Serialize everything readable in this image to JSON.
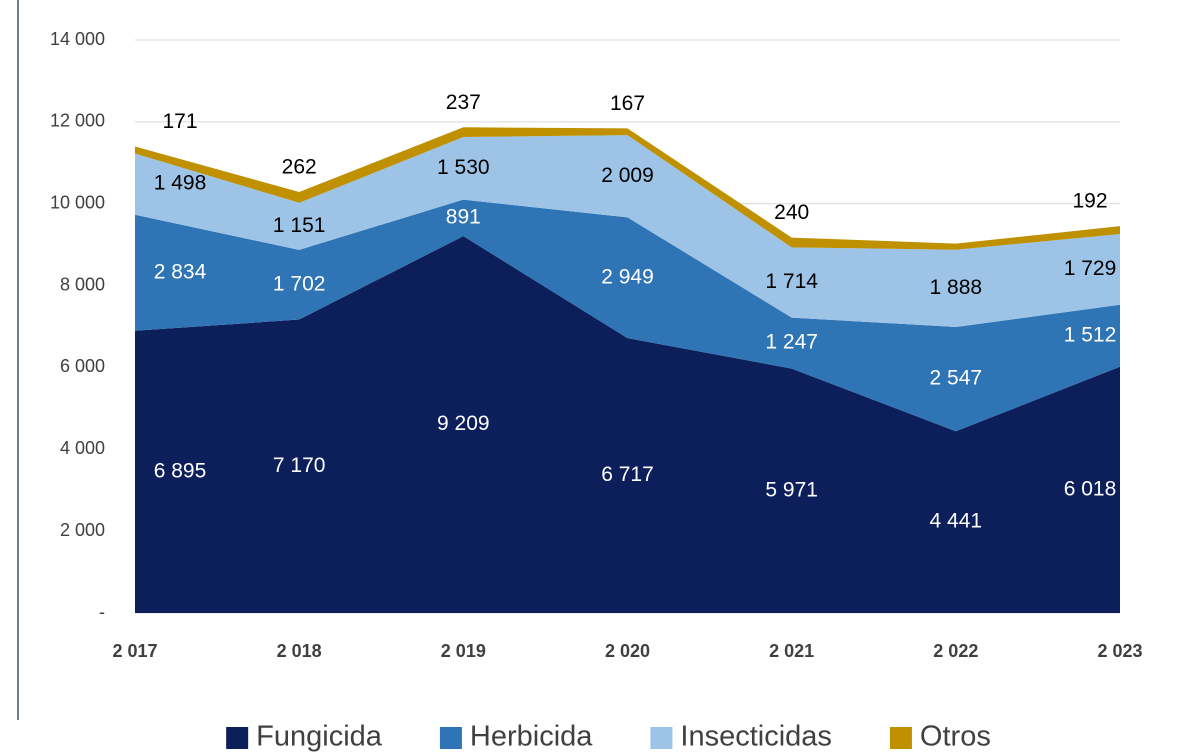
{
  "chart_data": {
    "type": "stacked_area",
    "categories": [
      "2 017",
      "2 018",
      "2 019",
      "2 020",
      "2 021",
      "2 022",
      "2 023"
    ],
    "series": [
      {
        "name": "Fungicida",
        "color": "#0c1f5b",
        "label_color": "#ffffff",
        "values": [
          6895,
          7170,
          9209,
          6717,
          5971,
          4441,
          6018
        ],
        "value_labels": [
          "6 895",
          "7 170",
          "9 209",
          "6 717",
          "5 971",
          "4 441",
          "6 018"
        ]
      },
      {
        "name": "Herbicida",
        "color": "#2f74b5",
        "label_color": "#ffffff",
        "values": [
          2834,
          1702,
          891,
          2949,
          1247,
          2547,
          1512
        ],
        "value_labels": [
          "2 834",
          "1 702",
          "891",
          "2 949",
          "1 247",
          "2 547",
          "1 512"
        ]
      },
      {
        "name": "Insecticidas",
        "color": "#9dc3e6",
        "label_color": "#000000",
        "values": [
          1498,
          1151,
          1530,
          2009,
          1714,
          1888,
          1729
        ],
        "value_labels": [
          "1 498",
          "1 151",
          "1 530",
          "2 009",
          "1 714",
          "1 888",
          "1 729"
        ]
      },
      {
        "name": "Otros",
        "color": "#bf9000",
        "label_color": "#000000",
        "values": [
          171,
          262,
          237,
          167,
          240,
          150,
          192
        ],
        "value_labels": [
          "171",
          "262",
          "237",
          "167",
          "240",
          null,
          "192"
        ]
      }
    ],
    "ylim": [
      0,
      14000
    ],
    "yticks": [
      {
        "value": 0,
        "label": "-"
      },
      {
        "value": 2000,
        "label": "2 000"
      },
      {
        "value": 4000,
        "label": "4 000"
      },
      {
        "value": 6000,
        "label": "6 000"
      },
      {
        "value": 8000,
        "label": "8 000"
      },
      {
        "value": 10000,
        "label": "10 000"
      },
      {
        "value": 12000,
        "label": "12 000"
      },
      {
        "value": 14000,
        "label": "14 000"
      }
    ],
    "grid": true,
    "legend": "bottom"
  }
}
